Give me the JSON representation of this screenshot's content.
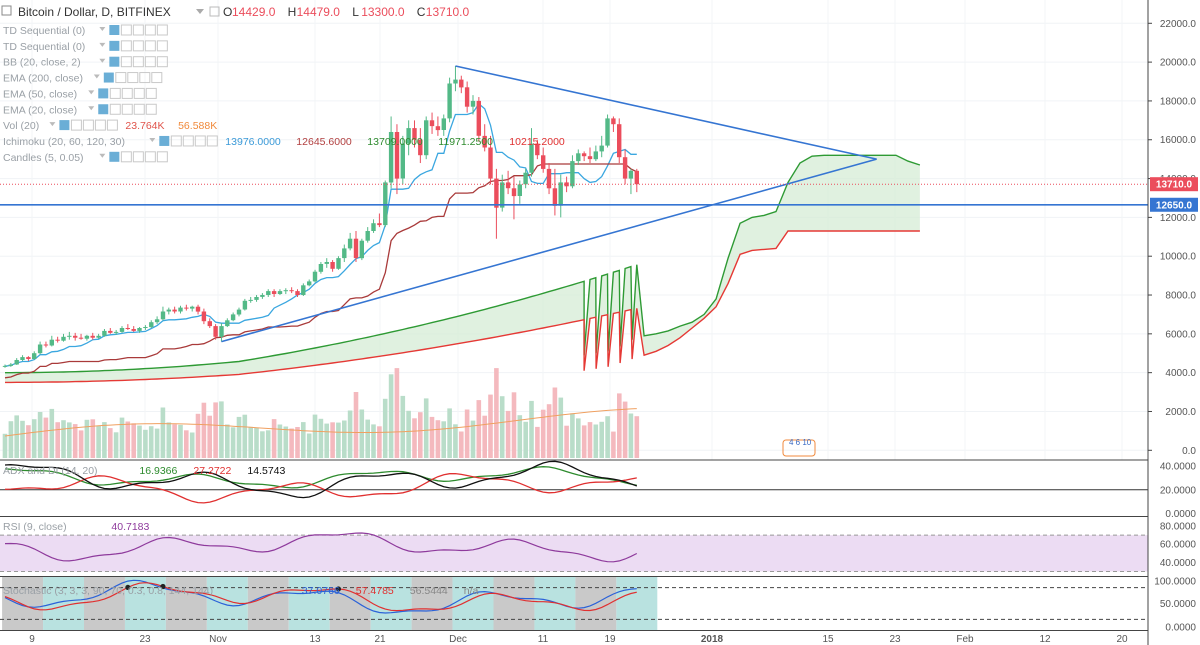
{
  "header": {
    "title": "Bitcoin / Dollar, D, BITFINEX",
    "ohlc": [
      {
        "k": "O",
        "v": "14429.0"
      },
      {
        "k": "H",
        "v": "14479.0"
      },
      {
        "k": "L",
        "v": "13300.0"
      },
      {
        "k": "C",
        "v": "13710.0"
      }
    ]
  },
  "indicators": [
    {
      "name": "TD Sequential (0)",
      "values": []
    },
    {
      "name": "TD Sequential (0)",
      "values": []
    },
    {
      "name": "BB (20, close, 2)",
      "values": []
    },
    {
      "name": "EMA (200, close)",
      "values": []
    },
    {
      "name": "EMA (50, close)",
      "values": []
    },
    {
      "name": "EMA (20, close)",
      "values": []
    },
    {
      "name": "Vol (20)",
      "values": [
        {
          "text": "23.764K",
          "color": "#e0544b"
        },
        {
          "text": "56.588K",
          "color": "#f08a3c"
        }
      ]
    },
    {
      "name": "Ichimoku (20, 60, 120, 30)",
      "values": [
        {
          "text": "13976.0000",
          "color": "#3b9ad8"
        },
        {
          "text": "12645.6000",
          "color": "#b24040"
        },
        {
          "text": "13709.0000",
          "color": "#2e8b2e"
        },
        {
          "text": "11971.2500",
          "color": "#2e8b2e"
        },
        {
          "text": "10215.2000",
          "color": "#e03030"
        }
      ]
    },
    {
      "name": "Candles (5, 0.05)",
      "values": []
    }
  ],
  "colors": {
    "up": "#53b987",
    "down": "#eb4d5c",
    "tenkan": "#3ba7e0",
    "kijun": "#a93a3a",
    "spanA": "#2e9a34",
    "spanB": "#e53935",
    "cloud": "#d5ecd6",
    "trendline": "#3575d2",
    "volUp": "#b9ddc9",
    "volDown": "#f4b9be",
    "volMA": "#f0a060"
  },
  "price_tags": [
    {
      "text": "13710.0",
      "value": 13710,
      "color": "#eb4d5c"
    },
    {
      "text": "12650.0",
      "value": 12650,
      "color": "#3575d2"
    }
  ],
  "x_axis_labels": [
    "9",
    "23",
    "Nov",
    "13",
    "21",
    "Dec",
    "11",
    "19",
    "2018",
    "15",
    "23",
    "Feb",
    "12",
    "20"
  ],
  "volume_note": "4  6  10",
  "panes": {
    "adx": {
      "label": "ADX and DI (14, 20)",
      "values": [
        {
          "text": "16.9366",
          "color": "#2e8b2e"
        },
        {
          "text": "27.2722",
          "color": "#e03030"
        },
        {
          "text": "14.5743",
          "color": "#111111"
        }
      ],
      "ticks": [
        "40.0000",
        "20.0000",
        "0.0000"
      ]
    },
    "rsi": {
      "label": "RSI (9, close)",
      "values": [
        {
          "text": "40.7183",
          "color": "#8e3a9c"
        }
      ],
      "ticks": [
        "80.0000",
        "60.0000",
        "40.0000"
      ]
    },
    "stoch": {
      "label": "Stochastic (3, 3, 3, 90, 70, 0.3, 0.8, 144, 144)",
      "values": [
        {
          "text": "37.0766",
          "color": "#2b62d8"
        },
        {
          "text": "57.4785",
          "color": "#e03030"
        },
        {
          "text": "56.5444",
          "color": "#888888"
        },
        {
          "text": "n/a",
          "color": "#888888"
        }
      ],
      "ticks": [
        "100.0000",
        "50.0000",
        "0.0000"
      ]
    }
  },
  "chart_data": {
    "type": "candlestick",
    "symbol": "Bitcoin / Dollar",
    "timeframe": "D",
    "exchange": "BITFINEX",
    "y_ticks": [
      0,
      2000,
      4000,
      6000,
      8000,
      10000,
      12000,
      14000,
      16000,
      18000,
      20000,
      22000
    ],
    "ylim": [
      -500,
      23200
    ],
    "last_close": 13710,
    "horizontal_line": 12650,
    "candles": [
      [
        4300,
        4420,
        4250,
        4350
      ],
      [
        4350,
        4500,
        4300,
        4420
      ],
      [
        4420,
        4750,
        4400,
        4650
      ],
      [
        4650,
        4900,
        4600,
        4800
      ],
      [
        4800,
        4850,
        4600,
        4700
      ],
      [
        4700,
        5100,
        4680,
        5000
      ],
      [
        5000,
        5600,
        4950,
        5450
      ],
      [
        5450,
        5600,
        5300,
        5400
      ],
      [
        5400,
        5900,
        5350,
        5700
      ],
      [
        5700,
        5850,
        5550,
        5650
      ],
      [
        5650,
        6000,
        5600,
        5850
      ],
      [
        5850,
        6100,
        5700,
        5900
      ],
      [
        5900,
        6050,
        5650,
        5800
      ],
      [
        5800,
        6000,
        5700,
        5750
      ],
      [
        5750,
        5950,
        5650,
        5900
      ],
      [
        5900,
        6050,
        5700,
        5800
      ],
      [
        5800,
        6000,
        5750,
        5900
      ],
      [
        5900,
        6250,
        5850,
        6150
      ],
      [
        6150,
        6300,
        6000,
        6050
      ],
      [
        6050,
        6200,
        5950,
        6100
      ],
      [
        6100,
        6400,
        6050,
        6300
      ],
      [
        6300,
        6500,
        6200,
        6250
      ],
      [
        6250,
        6400,
        6100,
        6150
      ],
      [
        6150,
        6350,
        6050,
        6300
      ],
      [
        6300,
        6450,
        6200,
        6350
      ],
      [
        6350,
        6700,
        6300,
        6600
      ],
      [
        6600,
        6900,
        6500,
        6750
      ],
      [
        6750,
        7400,
        6700,
        7150
      ],
      [
        7150,
        7350,
        7000,
        7250
      ],
      [
        7250,
        7400,
        7050,
        7150
      ],
      [
        7150,
        7450,
        7050,
        7350
      ],
      [
        7350,
        7500,
        7200,
        7300
      ],
      [
        7300,
        7450,
        7150,
        7400
      ],
      [
        7400,
        7500,
        7000,
        7150
      ],
      [
        7150,
        7300,
        6500,
        6650
      ],
      [
        6650,
        6800,
        6300,
        6400
      ],
      [
        6400,
        6500,
        5700,
        5850
      ],
      [
        5850,
        6550,
        5600,
        6400
      ],
      [
        6400,
        6800,
        6350,
        6700
      ],
      [
        6700,
        7100,
        6650,
        7000
      ],
      [
        7000,
        7350,
        6900,
        7250
      ],
      [
        7250,
        7800,
        7200,
        7700
      ],
      [
        7700,
        7900,
        7600,
        7750
      ],
      [
        7750,
        8000,
        7650,
        7900
      ],
      [
        7900,
        8100,
        7800,
        8000
      ],
      [
        8000,
        8300,
        7900,
        8200
      ],
      [
        8200,
        8300,
        7900,
        8050
      ],
      [
        8050,
        8300,
        8000,
        8200
      ],
      [
        8200,
        8350,
        8050,
        8250
      ],
      [
        8250,
        8400,
        8100,
        8200
      ],
      [
        8200,
        8300,
        7900,
        8000
      ],
      [
        8000,
        8600,
        7950,
        8500
      ],
      [
        8500,
        8800,
        8450,
        8700
      ],
      [
        8700,
        9300,
        8650,
        9200
      ],
      [
        9200,
        9700,
        9100,
        9600
      ],
      [
        9600,
        9900,
        9400,
        9700
      ],
      [
        9700,
        9800,
        9200,
        9350
      ],
      [
        9350,
        10000,
        9300,
        9900
      ],
      [
        9900,
        10600,
        9700,
        10400
      ],
      [
        10400,
        11200,
        10300,
        10900
      ],
      [
        10900,
        11300,
        9700,
        9900
      ],
      [
        9900,
        10900,
        9800,
        10800
      ],
      [
        10800,
        11500,
        10700,
        11300
      ],
      [
        11300,
        11900,
        11200,
        11700
      ],
      [
        11700,
        12200,
        11500,
        11600
      ],
      [
        11600,
        13900,
        11500,
        13800
      ],
      [
        13800,
        17200,
        13500,
        16400
      ],
      [
        16400,
        16800,
        13200,
        14000
      ],
      [
        14000,
        16200,
        13700,
        15800
      ],
      [
        15800,
        17000,
        15200,
        16600
      ],
      [
        16600,
        17000,
        15600,
        16000
      ],
      [
        16000,
        16600,
        14800,
        15200
      ],
      [
        15200,
        17200,
        15000,
        17000
      ],
      [
        17000,
        17400,
        16300,
        16700
      ],
      [
        16700,
        17200,
        16200,
        16500
      ],
      [
        16500,
        17300,
        16200,
        17100
      ],
      [
        17100,
        19200,
        16900,
        18900
      ],
      [
        18900,
        19800,
        18500,
        19100
      ],
      [
        19100,
        19300,
        18400,
        18700
      ],
      [
        18700,
        19000,
        17400,
        17700
      ],
      [
        17700,
        18300,
        17300,
        18000
      ],
      [
        18000,
        18200,
        15900,
        16200
      ],
      [
        16200,
        16800,
        15400,
        15600
      ],
      [
        15600,
        16200,
        13700,
        14000
      ],
      [
        14000,
        14500,
        10900,
        12500
      ],
      [
        12500,
        14200,
        12300,
        13800
      ],
      [
        13800,
        14400,
        13200,
        13500
      ],
      [
        13500,
        14100,
        11900,
        13100
      ],
      [
        13100,
        13900,
        12700,
        13700
      ],
      [
        13700,
        14500,
        13500,
        14300
      ],
      [
        14300,
        16600,
        14100,
        15800
      ],
      [
        15800,
        16000,
        15000,
        15200
      ],
      [
        15200,
        15600,
        14300,
        14500
      ],
      [
        14500,
        14800,
        13200,
        13500
      ],
      [
        13500,
        14500,
        12100,
        12600
      ],
      [
        12600,
        14200,
        12000,
        13800
      ],
      [
        13800,
        14100,
        13300,
        13600
      ],
      [
        13600,
        15200,
        13500,
        14900
      ],
      [
        14900,
        15500,
        14700,
        15300
      ],
      [
        15300,
        15400,
        14900,
        15150
      ],
      [
        15150,
        15600,
        14800,
        15000
      ],
      [
        15000,
        15700,
        14900,
        15400
      ],
      [
        15400,
        16200,
        15100,
        15700
      ],
      [
        15700,
        17300,
        15600,
        17100
      ],
      [
        17100,
        17200,
        16400,
        16800
      ],
      [
        16800,
        17100,
        14800,
        15100
      ],
      [
        15100,
        15500,
        13700,
        14000
      ],
      [
        14000,
        14500,
        13200,
        14400
      ],
      [
        14400,
        14500,
        13300,
        13710
      ]
    ],
    "ichimoku_cloud_projection": {
      "span_a": [
        4900,
        5000,
        5100,
        5350,
        5700,
        5900,
        6000,
        6150,
        6400,
        6600,
        7000,
        7800,
        9900,
        11700,
        12000,
        12100,
        12300,
        13800,
        14800,
        15150,
        15200,
        15200,
        15200,
        15200,
        15200,
        15200,
        15200,
        14900,
        14700
      ],
      "span_b": [
        4100,
        4200,
        4300,
        4500,
        4700,
        4900,
        5100,
        5400,
        5800,
        6300,
        6800,
        7400,
        8600,
        10100,
        10300,
        10350,
        10400,
        11300,
        11300,
        11300,
        11300,
        11300,
        11300,
        11300,
        11300,
        11300,
        11300,
        11300,
        11300
      ]
    },
    "ichimoku_current": {
      "tenkan": 13976.0,
      "kijun": 12645.6,
      "span_a": 11971.25,
      "span_b": 10215.2
    },
    "trendlines": [
      {
        "from": {
          "bar": 77,
          "value": 19800
        },
        "to": {
          "bar": 149,
          "value": 15000
        }
      },
      {
        "from": {
          "bar": 37,
          "value": 5600
        },
        "to": {
          "bar": 149,
          "value": 15000
        }
      }
    ],
    "volume": {
      "last": "23.764K",
      "ma": "56.588K",
      "ma_period": 20
    }
  }
}
